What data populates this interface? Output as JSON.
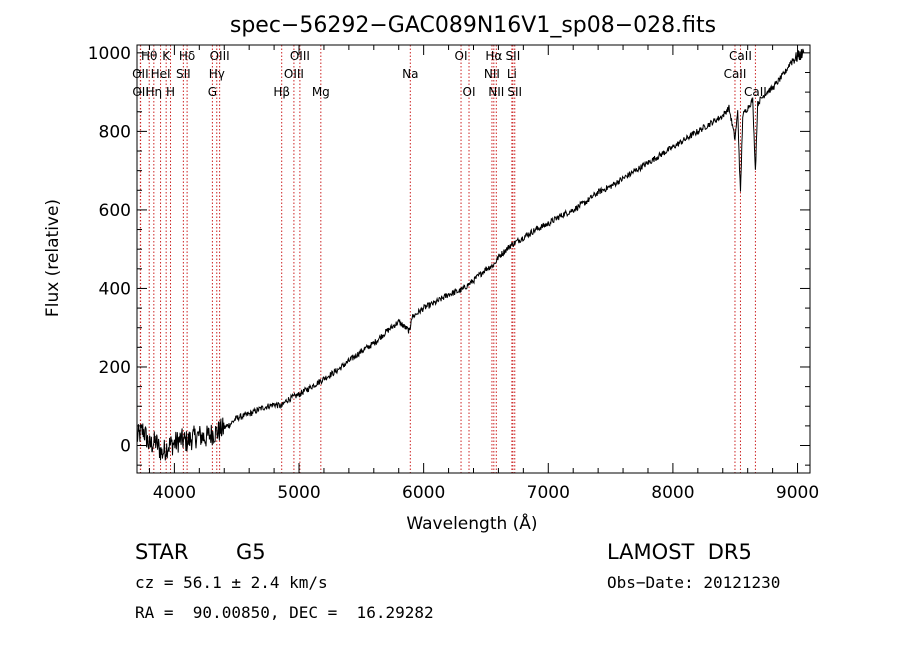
{
  "chart_data": {
    "type": "line",
    "title": "spec−56292−GAC089N16V1_sp08−028.fits",
    "xlabel": "Wavelength (Å)",
    "ylabel": "Flux (relative)",
    "xlim": [
      3700,
      9100
    ],
    "ylim": [
      -70,
      1020
    ],
    "xticks": [
      4000,
      5000,
      6000,
      7000,
      8000,
      9000
    ],
    "yticks": [
      0,
      200,
      400,
      600,
      800,
      1000
    ],
    "grid": false,
    "legend": "none",
    "series": [
      {
        "x": [
          3700,
          3750,
          3800,
          3850,
          3900,
          3950,
          4000,
          4050,
          4100,
          4150,
          4200,
          4250,
          4300,
          4350,
          4400,
          4450,
          4500,
          4600,
          4700,
          4800,
          4861,
          4900,
          5000,
          5100,
          5200,
          5300,
          5400,
          5500,
          5600,
          5700,
          5800,
          5890,
          5900,
          6000,
          6100,
          6200,
          6300,
          6400,
          6500,
          6563,
          6600,
          6700,
          6800,
          6900,
          7000,
          7100,
          7200,
          7300,
          7400,
          7500,
          7600,
          7700,
          7800,
          7900,
          8000,
          8100,
          8200,
          8300,
          8400,
          8450,
          8498,
          8520,
          8542,
          8560,
          8600,
          8640,
          8662,
          8680,
          8700,
          8750,
          8800,
          8850,
          8900,
          8950,
          9000,
          9050
        ],
        "y": [
          20,
          40,
          0,
          10,
          -20,
          0,
          5,
          15,
          10,
          20,
          25,
          20,
          30,
          35,
          45,
          55,
          70,
          80,
          95,
          105,
          100,
          115,
          130,
          150,
          170,
          190,
          215,
          240,
          260,
          290,
          315,
          290,
          325,
          350,
          365,
          385,
          395,
          420,
          450,
          460,
          480,
          510,
          530,
          550,
          565,
          585,
          600,
          620,
          645,
          660,
          680,
          700,
          720,
          740,
          760,
          780,
          800,
          820,
          840,
          860,
          780,
          850,
          640,
          840,
          860,
          880,
          700,
          870,
          880,
          900,
          910,
          930,
          950,
          980,
          990,
          1000
        ]
      }
    ],
    "spectral_lines": [
      {
        "label": "Hθ",
        "x": 3798,
        "row": 0
      },
      {
        "label": "OII",
        "x": 3727,
        "row": 1
      },
      {
        "label": "OII",
        "x": 3729,
        "row": 2
      },
      {
        "label": "K",
        "x": 3934,
        "row": 0
      },
      {
        "label": "HeI",
        "x": 3889,
        "row": 1
      },
      {
        "label": "Hη",
        "x": 3835,
        "row": 2
      },
      {
        "label": "Hδ",
        "x": 4102,
        "row": 0
      },
      {
        "label": "SII",
        "x": 4072,
        "row": 1
      },
      {
        "label": "H",
        "x": 3969,
        "row": 2
      },
      {
        "label": "OIII",
        "x": 4363,
        "row": 0
      },
      {
        "label": "Hγ",
        "x": 4340,
        "row": 1
      },
      {
        "label": "G",
        "x": 4305,
        "row": 2
      },
      {
        "label": "OIII",
        "x": 5007,
        "row": 0
      },
      {
        "label": "OIII",
        "x": 4959,
        "row": 1
      },
      {
        "label": "Hβ",
        "x": 4861,
        "row": 2
      },
      {
        "label": "Mg",
        "x": 5175,
        "row": 2
      },
      {
        "label": "Na",
        "x": 5893,
        "row": 1
      },
      {
        "label": "OI",
        "x": 6300,
        "row": 0
      },
      {
        "label": "OI",
        "x": 6364,
        "row": 2
      },
      {
        "label": "Hα",
        "x": 6563,
        "row": 0
      },
      {
        "label": "SII",
        "x": 6716,
        "row": 0
      },
      {
        "label": "NII",
        "x": 6548,
        "row": 1
      },
      {
        "label": "Li",
        "x": 6708,
        "row": 1
      },
      {
        "label": "NII",
        "x": 6583,
        "row": 2
      },
      {
        "label": "SII",
        "x": 6731,
        "row": 2
      },
      {
        "label": "CaII",
        "x": 8542,
        "row": 0
      },
      {
        "label": "CaII",
        "x": 8498,
        "row": 1
      },
      {
        "label": "CaII",
        "x": 8662,
        "row": 2
      }
    ]
  },
  "info": {
    "class": "STAR",
    "subclass": "G5",
    "survey": "LAMOST  DR5",
    "cz": "cz = 56.1 ± 2.4 km/s",
    "obs_date": "Obs−Date: 20121230",
    "radec": "RA =  90.00850, DEC =  16.29282"
  },
  "colors": {
    "spectrum": "#000000",
    "line_marker": "#cc2222",
    "axes": "#000000"
  }
}
